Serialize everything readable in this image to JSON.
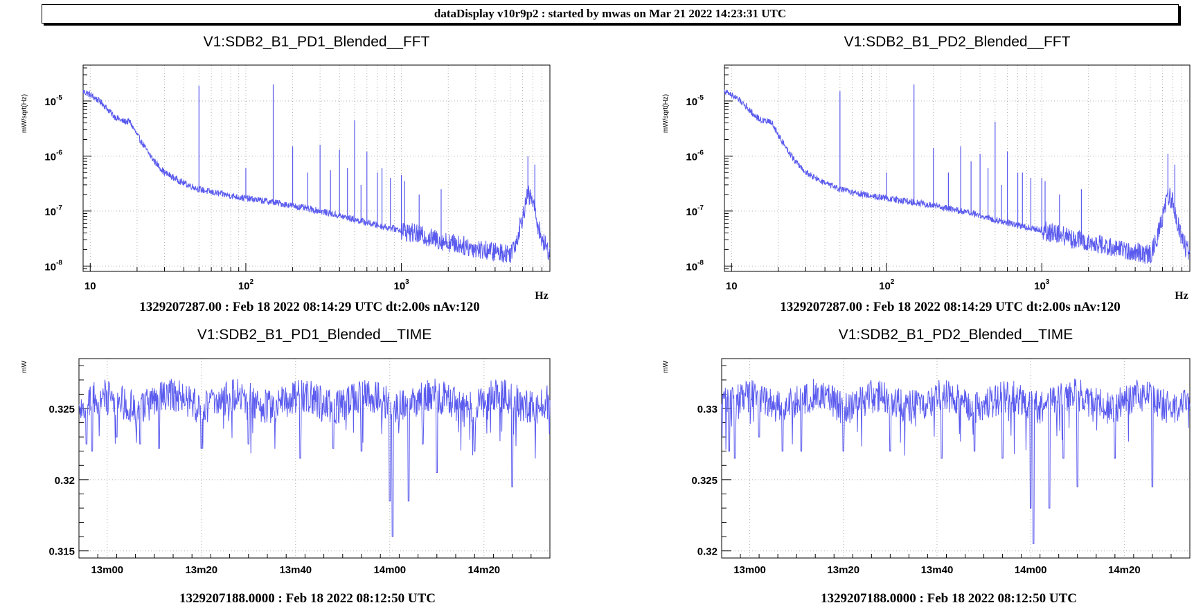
{
  "app_title": "dataDisplay v10r9p2 : started by mwas on Mar 21 2022 14:23:31 UTC",
  "chart_data": [
    {
      "type": "line",
      "title": "V1:SDB2_B1_PD1_Blended__FFT",
      "ylabel": "mW/sqrt(Hz)",
      "xlabel": "Hz",
      "xscale": "log",
      "yscale": "log",
      "xlim": [
        9,
        9000
      ],
      "ylim": [
        8e-09,
        4.5e-05
      ],
      "x_ticks": [
        "10",
        "10^2",
        "10^3"
      ],
      "y_ticks": [
        "10^-8",
        "10^-7",
        "10^-6",
        "10^-5"
      ],
      "footer": "1329207287.00 : Feb 18 2022 08:14:29 UTC dt:2.00s nAv:120",
      "color": "#5a5aee",
      "x": [
        9,
        10,
        12,
        14,
        16,
        18,
        20,
        25,
        30,
        40,
        50,
        60,
        80,
        100,
        150,
        200,
        300,
        500,
        700,
        1000,
        1500,
        2000,
        3000,
        4000,
        5000,
        5500,
        6000,
        6500,
        7000,
        7500,
        8000,
        9000
      ],
      "y": [
        1.5e-05,
        1.3e-05,
        9e-06,
        5.5e-06,
        4.3e-06,
        4.2e-06,
        2.4e-06,
        9e-07,
        5e-07,
        3.2e-07,
        2.5e-07,
        2.2e-07,
        1.9e-07,
        1.7e-07,
        1.45e-07,
        1.25e-07,
        1e-07,
        7e-08,
        5.5e-08,
        4.5e-08,
        3.3e-08,
        2.7e-08,
        2.1e-08,
        1.8e-08,
        1.7e-08,
        3e-08,
        8e-08,
        2e-07,
        1.5e-07,
        6e-08,
        3e-08,
        1.7e-08
      ],
      "peaks": [
        [
          50,
          1.9e-05
        ],
        [
          100,
          6e-07
        ],
        [
          150,
          2e-05
        ],
        [
          200,
          1.5e-06
        ],
        [
          250,
          5e-07
        ],
        [
          300,
          1.6e-06
        ],
        [
          350,
          5.5e-07
        ],
        [
          400,
          1.3e-06
        ],
        [
          450,
          6e-07
        ],
        [
          500,
          4.5e-06
        ],
        [
          550,
          3e-07
        ],
        [
          600,
          1.2e-06
        ],
        [
          700,
          5e-07
        ],
        [
          750,
          6e-07
        ],
        [
          850,
          4e-07
        ],
        [
          1000,
          4.5e-07
        ],
        [
          1050,
          3.5e-07
        ],
        [
          1300,
          2e-07
        ],
        [
          1800,
          2.5e-07
        ],
        [
          6500,
          1e-06
        ],
        [
          7200,
          7e-07
        ]
      ]
    },
    {
      "type": "line",
      "title": "V1:SDB2_B1_PD2_Blended__FFT",
      "ylabel": "mW/sqrt(Hz)",
      "xlabel": "Hz",
      "xscale": "log",
      "yscale": "log",
      "xlim": [
        9,
        9000
      ],
      "ylim": [
        8e-09,
        4.5e-05
      ],
      "x_ticks": [
        "10",
        "10^2",
        "10^3"
      ],
      "y_ticks": [
        "10^-8",
        "10^-7",
        "10^-6",
        "10^-5"
      ],
      "footer": "1329207287.00 : Feb 18 2022 08:14:29 UTC dt:2.00s nAv:120",
      "color": "#5a5aee",
      "x": [
        9,
        10,
        12,
        14,
        16,
        18,
        20,
        25,
        30,
        40,
        50,
        60,
        80,
        100,
        150,
        200,
        300,
        500,
        700,
        1000,
        1500,
        2000,
        3000,
        4000,
        5000,
        5500,
        6000,
        6500,
        7000,
        7500,
        8000,
        9000
      ],
      "y": [
        1.5e-05,
        1.3e-05,
        9e-06,
        5.5e-06,
        4.3e-06,
        4.2e-06,
        2.4e-06,
        9e-07,
        5e-07,
        3.2e-07,
        2.5e-07,
        2.2e-07,
        1.9e-07,
        1.7e-07,
        1.45e-07,
        1.25e-07,
        1e-07,
        7e-08,
        5.5e-08,
        4.5e-08,
        3.3e-08,
        2.7e-08,
        2.1e-08,
        1.8e-08,
        1.6e-08,
        3e-08,
        8e-08,
        2e-07,
        1.5e-07,
        6e-08,
        3e-08,
        1.6e-08
      ],
      "peaks": [
        [
          50,
          1.5e-05
        ],
        [
          100,
          5e-07
        ],
        [
          150,
          2e-05
        ],
        [
          200,
          1.4e-06
        ],
        [
          250,
          5e-07
        ],
        [
          300,
          1.5e-06
        ],
        [
          350,
          8e-07
        ],
        [
          400,
          1.1e-06
        ],
        [
          450,
          6e-07
        ],
        [
          500,
          4.2e-06
        ],
        [
          550,
          3e-07
        ],
        [
          600,
          1.2e-06
        ],
        [
          700,
          5e-07
        ],
        [
          750,
          5e-07
        ],
        [
          850,
          4e-07
        ],
        [
          1000,
          4e-07
        ],
        [
          1050,
          3.5e-07
        ],
        [
          1300,
          2e-07
        ],
        [
          1800,
          2.5e-07
        ],
        [
          6500,
          1.1e-06
        ],
        [
          7200,
          7e-07
        ]
      ]
    },
    {
      "type": "line",
      "title": "V1:SDB2_B1_PD1_Blended__TIME",
      "ylabel": "mW",
      "xlabel": "",
      "xlim": [
        -15,
        35
      ],
      "ylim": [
        0.3145,
        0.3285
      ],
      "x_tick_values": [
        0,
        10,
        20,
        30
      ],
      "x_tick_labels": [
        "13m00",
        "13m20",
        "13m40",
        "14m00",
        "14m20"
      ],
      "x_tick_seconds": [
        -12,
        -2,
        8,
        18,
        28
      ],
      "y_tick_values": [
        0.315,
        0.32,
        0.325
      ],
      "y_tick_labels": [
        "0.315",
        "0.32",
        "0.325"
      ],
      "footer": "1329207188.0000 : Feb 18 2022 08:12:50 UTC",
      "color": "#5a5aee",
      "mean": 0.3255,
      "spread": 0.0012,
      "dips": [
        [
          -14.2,
          0.3225
        ],
        [
          -13.6,
          0.322
        ],
        [
          -11,
          0.323
        ],
        [
          -8.5,
          0.3225
        ],
        [
          -6.5,
          0.3222
        ],
        [
          -2,
          0.3222
        ],
        [
          3,
          0.3225
        ],
        [
          8.5,
          0.3215
        ],
        [
          12,
          0.3222
        ],
        [
          15,
          0.322
        ],
        [
          18,
          0.3185
        ],
        [
          18.3,
          0.316
        ],
        [
          20,
          0.3185
        ],
        [
          21.5,
          0.3225
        ],
        [
          23,
          0.3205
        ],
        [
          27,
          0.322
        ],
        [
          31,
          0.3195
        ]
      ]
    },
    {
      "type": "line",
      "title": "V1:SDB2_B1_PD2_Blended__TIME",
      "ylabel": "mW",
      "xlabel": "",
      "xlim": [
        -15,
        35
      ],
      "ylim": [
        0.3195,
        0.3335
      ],
      "y_tick_values": [
        0.32,
        0.325,
        0.33
      ],
      "y_tick_labels": [
        "0.32",
        "0.325",
        "0.33"
      ],
      "x_tick_labels": [
        "13m00",
        "13m20",
        "13m40",
        "14m00",
        "14m20"
      ],
      "x_tick_seconds": [
        -12,
        -2,
        8,
        18,
        28
      ],
      "footer": "1329207188.0000 : Feb 18 2022 08:12:50 UTC",
      "color": "#5a5aee",
      "mean": 0.3305,
      "spread": 0.0012,
      "dips": [
        [
          -14.2,
          0.327
        ],
        [
          -13.6,
          0.3265
        ],
        [
          -11,
          0.328
        ],
        [
          -8.5,
          0.327
        ],
        [
          -6.5,
          0.327
        ],
        [
          -2,
          0.327
        ],
        [
          3,
          0.327
        ],
        [
          8.5,
          0.3265
        ],
        [
          12,
          0.327
        ],
        [
          15,
          0.3265
        ],
        [
          18,
          0.323
        ],
        [
          18.3,
          0.3205
        ],
        [
          20,
          0.323
        ],
        [
          21.5,
          0.3265
        ],
        [
          23,
          0.3245
        ],
        [
          27,
          0.3265
        ],
        [
          31,
          0.3245
        ]
      ]
    }
  ]
}
